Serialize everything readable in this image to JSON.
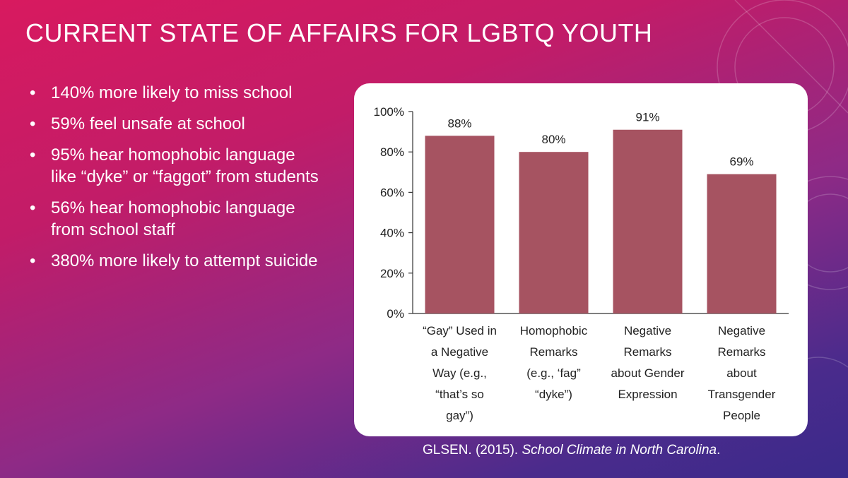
{
  "slide": {
    "title": "Current State of Affairs for LGBTQ Youth",
    "bullets": [
      "140% more likely to miss school",
      "59% feel unsafe at school",
      "95% hear homophobic language like “dyke” or “faggot” from students",
      "56% hear homophobic language from school staff",
      "380% more likely to attempt suicide"
    ],
    "bullet_glyph": "•",
    "citation": {
      "prefix": "GLSEN. (2015). ",
      "title": "School Climate in North Carolina",
      "suffix": "."
    }
  },
  "colors": {
    "bar": "#a65361",
    "background_start": "#d81a5f",
    "background_end": "#3a2a8a"
  },
  "chart_data": {
    "type": "bar",
    "categories": [
      [
        "“Gay” Used in",
        "a Negative",
        "Way (e.g.,",
        "“that’s so",
        "gay”)"
      ],
      [
        "Homophobic",
        "Remarks",
        "(e.g., ‘fag”",
        "“dyke”)"
      ],
      [
        "Negative",
        "Remarks",
        "about Gender",
        "Expression"
      ],
      [
        "Negative",
        "Remarks",
        "about",
        "Transgender",
        "People"
      ]
    ],
    "values": [
      88,
      80,
      91,
      69
    ],
    "data_labels": [
      "88%",
      "80%",
      "91%",
      "69%"
    ],
    "yticks": [
      0,
      20,
      40,
      60,
      80,
      100
    ],
    "ytick_labels": [
      "0%",
      "20%",
      "40%",
      "60%",
      "80%",
      "100%"
    ],
    "ylim": [
      0,
      100
    ],
    "grid": false
  }
}
